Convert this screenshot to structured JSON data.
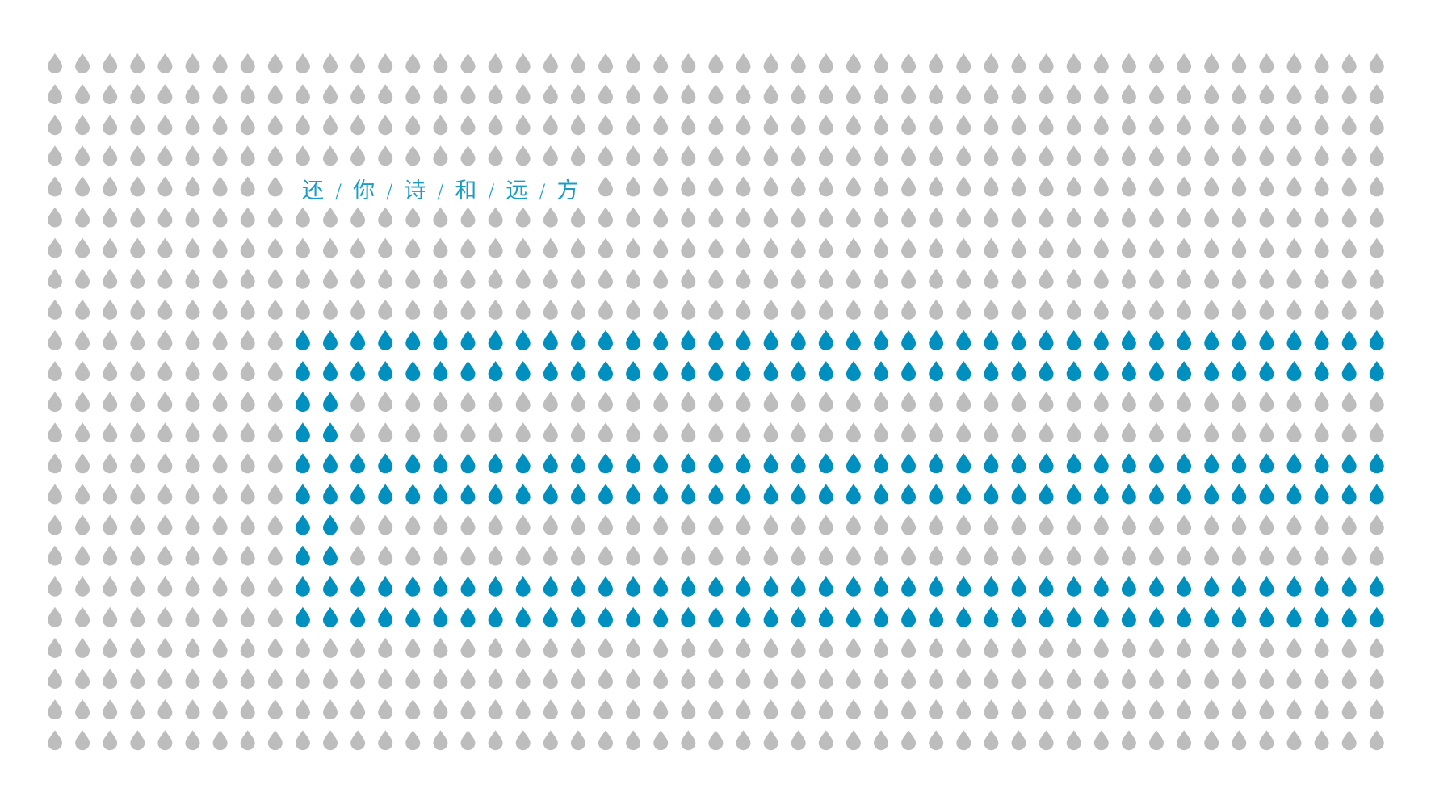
{
  "tagline": {
    "parts": [
      "还",
      "你",
      "诗",
      "和",
      "远",
      "方"
    ],
    "separator": "/"
  },
  "colors": {
    "background": "#ffffff",
    "drop_inactive": "#bdbdbd",
    "drop_active": "#0090bf",
    "text": "#1a9cc8"
  },
  "drop_grid": {
    "icon": "water-drop-icon",
    "columns": 49,
    "rows": 23,
    "text_gap": {
      "row": 4,
      "from_col": 9,
      "to_col": 19
    },
    "active": [
      {
        "row": 9,
        "from_col": 9,
        "to_col": 48
      },
      {
        "row": 10,
        "from_col": 9,
        "to_col": 48
      },
      {
        "row": 11,
        "from_col": 9,
        "to_col": 10
      },
      {
        "row": 12,
        "from_col": 9,
        "to_col": 10
      },
      {
        "row": 13,
        "from_col": 9,
        "to_col": 48
      },
      {
        "row": 14,
        "from_col": 9,
        "to_col": 48
      },
      {
        "row": 15,
        "from_col": 9,
        "to_col": 10
      },
      {
        "row": 16,
        "from_col": 9,
        "to_col": 10
      },
      {
        "row": 17,
        "from_col": 9,
        "to_col": 48
      },
      {
        "row": 18,
        "from_col": 9,
        "to_col": 48
      }
    ]
  }
}
